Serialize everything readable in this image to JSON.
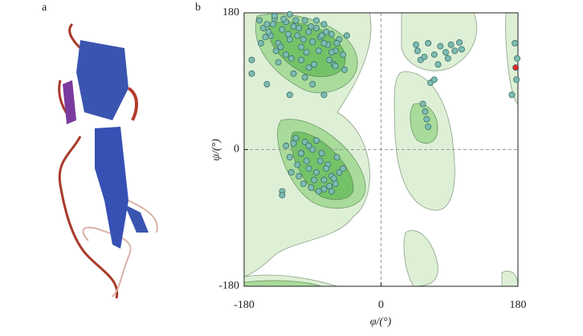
{
  "figure": {
    "panels": [
      "a",
      "b"
    ]
  },
  "chart_data": {
    "type": "scatter",
    "x_label": "φ/(°)",
    "y_label": "ψ/(°)",
    "xlim": [
      -180,
      180
    ],
    "ylim": [
      -180,
      180
    ],
    "xticks": [
      -180,
      0,
      180
    ],
    "yticks": [
      -180,
      0,
      180
    ],
    "series": [
      {
        "color": "#7dbcb2",
        "x": [
          -160,
          -155,
          -150,
          -145,
          -140,
          -135,
          -130,
          -125,
          -120,
          -115,
          -110,
          -105,
          -100,
          -95,
          -90,
          -85,
          -80,
          -75,
          -70,
          -65,
          -60,
          -55,
          -50,
          -45,
          -158,
          -148,
          -138,
          -128,
          -118,
          -108,
          -98,
          -88,
          -78,
          -68,
          -58,
          -48,
          -152,
          -142,
          -132,
          -122,
          -112,
          -102,
          -92,
          -82,
          -72,
          -62,
          -135,
          -115,
          -95,
          -75,
          -125,
          -105,
          -85,
          -65,
          -140,
          -100,
          -60,
          -170,
          -90,
          -120,
          -125,
          -120,
          -115,
          -110,
          -105,
          -100,
          -95,
          -90,
          -85,
          -80,
          -75,
          -70,
          -65,
          -60,
          -55,
          -50,
          -118,
          -108,
          -98,
          -88,
          -78,
          -68,
          -58,
          -112,
          -102,
          -92,
          -82,
          -72,
          -62,
          -95,
          -85,
          -75,
          -130,
          -105,
          -65,
          46,
          48,
          52,
          57,
          62,
          70,
          75,
          78,
          85,
          88,
          92,
          97,
          103,
          106,
          55,
          58,
          60,
          62,
          65,
          70,
          176,
          178,
          179,
          172,
          -170,
          -150,
          -75,
          -130,
          -120
        ],
        "y": [
          170,
          160,
          165,
          150,
          172,
          140,
          158,
          168,
          145,
          162,
          150,
          135,
          170,
          155,
          142,
          160,
          148,
          165,
          138,
          152,
          130,
          145,
          125,
          150,
          140,
          155,
          130,
          172,
          120,
          160,
          128,
          112,
          150,
          118,
          140,
          105,
          148,
          165,
          135,
          152,
          170,
          145,
          162,
          130,
          155,
          112,
          115,
          100,
          108,
          140,
          125,
          118,
          170,
          128,
          176,
          95,
          110,
          118,
          86,
          178,
          5,
          -10,
          8,
          -20,
          -5,
          10,
          -25,
          0,
          -30,
          -15,
          -40,
          -20,
          -35,
          -45,
          -30,
          -25,
          -30,
          -35,
          -15,
          -40,
          -5,
          -48,
          -10,
          15,
          -45,
          -50,
          -55,
          -25,
          -38,
          5,
          12,
          -52,
          -55,
          -5,
          -55,
          138,
          130,
          118,
          122,
          140,
          125,
          112,
          136,
          128,
          120,
          138,
          130,
          141,
          132,
          60,
          50,
          40,
          30,
          88,
          92,
          140,
          92,
          120,
          72,
          100,
          86,
          72,
          -60,
          72
        ]
      },
      {
        "color": "#e02a2a",
        "x": [
          177
        ],
        "y": [
          108
        ]
      }
    ]
  }
}
